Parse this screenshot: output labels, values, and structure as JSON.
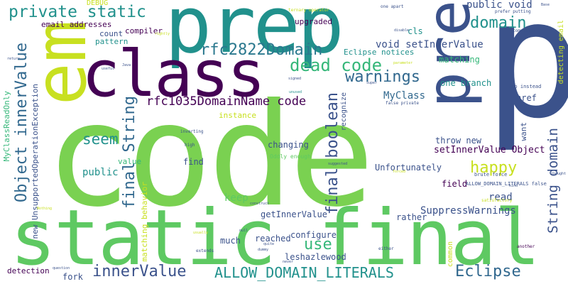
{
  "palette": {
    "green": "#5ec962",
    "lime": "#c8e020",
    "teal": "#21918c",
    "blue": "#3b528b",
    "purple": "#440154",
    "cyan": "#2a9d8f",
    "lightgreen": "#7ad151"
  },
  "words": [
    {
      "key": "code",
      "text": "code",
      "color": "#7ad151"
    },
    {
      "key": "static_final",
      "text": "static final",
      "color": "#5ec962"
    },
    {
      "key": "prep",
      "text": "prep",
      "color": "#21918c"
    },
    {
      "key": "p",
      "text": "p",
      "color": "#3b528b"
    },
    {
      "key": "pre",
      "text": "pre",
      "color": "#3b528b"
    },
    {
      "key": "em",
      "text": "em",
      "color": "#c8e020"
    },
    {
      "key": "class",
      "text": "class",
      "color": "#440154"
    },
    {
      "key": "private_static",
      "text": "private static",
      "color": "#21918c"
    },
    {
      "key": "rfc2822Domain",
      "text": "rfc2822Domain",
      "color": "#2a788e"
    },
    {
      "key": "dead_code",
      "text": "dead code",
      "color": "#35b779"
    },
    {
      "key": "warnings",
      "text": "warnings",
      "color": "#31688e"
    },
    {
      "key": "object_innervalue",
      "text": "Object innerValue",
      "color": "#31688e"
    },
    {
      "key": "rfc1035",
      "text": "rfc1035DomainName code",
      "color": "#440154"
    },
    {
      "key": "final_string",
      "text": "final String",
      "color": "#31688e"
    },
    {
      "key": "final_boolean",
      "text": "final boolean",
      "color": "#3b528b"
    },
    {
      "key": "domain",
      "text": "domain",
      "color": "#21918c"
    },
    {
      "key": "happy",
      "text": "happy",
      "color": "#c8e020"
    },
    {
      "key": "use",
      "text": "use",
      "color": "#35b779"
    },
    {
      "key": "seem",
      "text": "seem",
      "color": "#21918c"
    },
    {
      "key": "innervalue",
      "text": "innerValue",
      "color": "#3b528b"
    },
    {
      "key": "allow_domain_literals",
      "text": "ALLOW_DOMAIN_LITERALS",
      "color": "#21918c"
    },
    {
      "key": "eclipse",
      "text": "Eclipse",
      "color": "#31688e"
    },
    {
      "key": "string_domain",
      "text": "String domain",
      "color": "#3b528b"
    },
    {
      "key": "public_void",
      "text": "public void",
      "color": "#3b528b"
    },
    {
      "key": "void_setinnervalue",
      "text": "void setInnerValue",
      "color": "#3b528b"
    },
    {
      "key": "myclass",
      "text": "MyClass",
      "color": "#31688e"
    },
    {
      "key": "setinnervalue_object",
      "text": "setInnerValue Object",
      "color": "#440154"
    },
    {
      "key": "throw_new",
      "text": "throw new",
      "color": "#3b528b"
    },
    {
      "key": "suppresswarnings",
      "text": "SuppressWarnings",
      "color": "#3b528b"
    },
    {
      "key": "read",
      "text": "read",
      "color": "#3b528b"
    },
    {
      "key": "public",
      "text": "public",
      "color": "#21918c"
    },
    {
      "key": "keep",
      "text": "keep",
      "color": "#5ec962"
    },
    {
      "key": "getinnervalue",
      "text": "getInnerValue",
      "color": "#3b528b"
    },
    {
      "key": "configure",
      "text": "configure",
      "color": "#3b528b"
    },
    {
      "key": "reached",
      "text": "reached",
      "color": "#3b528b"
    },
    {
      "key": "leshazlewood",
      "text": "leshazlewood",
      "color": "#3b528b"
    },
    {
      "key": "much",
      "text": "much",
      "color": "#3b528b"
    },
    {
      "key": "fork",
      "text": "fork",
      "color": "#3b528b"
    },
    {
      "key": "detection",
      "text": "detection",
      "color": "#440154"
    },
    {
      "key": "rather",
      "text": "rather",
      "color": "#3b528b"
    },
    {
      "key": "unfortunately",
      "text": "Unfortunately",
      "color": "#3b528b"
    },
    {
      "key": "changing",
      "text": "changing",
      "color": "#3b528b"
    },
    {
      "key": "find",
      "text": "find",
      "color": "#3b528b"
    },
    {
      "key": "instance",
      "text": "instance",
      "color": "#c8e020"
    },
    {
      "key": "value",
      "text": "value",
      "color": "#35b779"
    },
    {
      "key": "field",
      "text": "field",
      "color": "#440154"
    },
    {
      "key": "href",
      "text": "href",
      "color": "#3b528b"
    },
    {
      "key": "one_branch",
      "text": "one branch",
      "color": "#21918c"
    },
    {
      "key": "matching",
      "text": "matching",
      "color": "#35b779"
    },
    {
      "key": "eclipse_notices",
      "text": "Eclipse notices",
      "color": "#21918c"
    },
    {
      "key": "upgraded",
      "text": "upgraded",
      "color": "#440154"
    },
    {
      "key": "cls",
      "text": "cls",
      "color": "#21918c"
    },
    {
      "key": "compiler",
      "text": "compiler",
      "color": "#440154"
    },
    {
      "key": "count",
      "text": "count",
      "color": "#3b528b"
    },
    {
      "key": "pattern",
      "text": "pattern",
      "color": "#21918c"
    },
    {
      "key": "email_addresses",
      "text": "email addresses",
      "color": "#440154"
    },
    {
      "key": "debug",
      "text": "DEBUG",
      "color": "#c8e020"
    },
    {
      "key": "myclassreadonly",
      "text": "MyClassReadOnly",
      "color": "#35b779"
    },
    {
      "key": "new_unsupported",
      "text": "new UnsupportedOperationException",
      "color": "#3b528b"
    },
    {
      "key": "matching_behavior",
      "text": "matching behavior",
      "color": "#c8e020"
    },
    {
      "key": "recognize",
      "text": "recognize",
      "color": "#3b528b"
    },
    {
      "key": "want",
      "text": "want",
      "color": "#3b528b"
    },
    {
      "key": "detecting_email",
      "text": "detecting email",
      "color": "#c8e020"
    },
    {
      "key": "oddly_enough",
      "text": "Oddly enough",
      "color": "#5ec962"
    },
    {
      "key": "inverting",
      "text": "inverting",
      "color": "#3b528b"
    },
    {
      "key": "high",
      "text": "high",
      "color": "#3b528b"
    },
    {
      "key": "brute_force",
      "text": "brute force",
      "color": "#3b528b"
    },
    {
      "key": "allow_false",
      "text": "ALLOW_DOMAIN_LITERALS false",
      "color": "#3b528b"
    },
    {
      "key": "satisfactory",
      "text": "satisfactory",
      "color": "#c8e020"
    },
    {
      "key": "top_instead",
      "text": "top instead",
      "color": "#3b528b"
    },
    {
      "key": "complains",
      "text": "complains",
      "color": "#3b528b"
    },
    {
      "key": "prefer_putting",
      "text": "prefer putting",
      "color": "#3b528b"
    },
    {
      "key": "ternary_operator",
      "text": "ternary operator",
      "color": "#c8e020"
    },
    {
      "key": "one_apart",
      "text": "one apart",
      "color": "#3b528b"
    },
    {
      "key": "false_private",
      "text": "false private",
      "color": "#3b528b"
    },
    {
      "key": "common",
      "text": "common",
      "color": "#c8e020"
    },
    {
      "key": "another",
      "text": "another",
      "color": "#440154"
    },
    {
      "key": "either",
      "text": "either",
      "color": "#3b528b"
    },
    {
      "key": "never",
      "text": "never",
      "color": "#3b528b"
    },
    {
      "key": "quite",
      "text": "quite",
      "color": "#3b528b"
    },
    {
      "key": "dummy",
      "text": "dummy",
      "color": "#3b528b"
    },
    {
      "key": "extends",
      "text": "extends",
      "color": "#3b528b"
    },
    {
      "key": "question",
      "text": "question",
      "color": "#3b528b"
    },
    {
      "key": "nothing",
      "text": "Nothing",
      "color": "#c8e020"
    },
    {
      "key": "usually",
      "text": "usually",
      "color": "#c8e020"
    },
    {
      "key": "construct",
      "text": "construct",
      "color": "#3b528b"
    },
    {
      "key": "null",
      "text": "null",
      "color": "#3b528b"
    },
    {
      "key": "return",
      "text": "return",
      "color": "#3b528b"
    },
    {
      "key": "useful",
      "text": "useful",
      "color": "#3b528b"
    },
    {
      "key": "java",
      "text": "Java",
      "color": "#3b528b"
    },
    {
      "key": "rightly",
      "text": "rightly",
      "color": "#c8e020"
    },
    {
      "key": "disable",
      "text": "disable",
      "color": "#3b528b"
    },
    {
      "key": "parameter",
      "text": "parameter",
      "color": "#c8e020"
    },
    {
      "key": "signed",
      "text": "signed",
      "color": "#3b528b"
    },
    {
      "key": "unused",
      "text": "unused",
      "color": "#21918c"
    },
    {
      "key": "super",
      "text": "super",
      "color": "#3b528b"
    },
    {
      "key": "suggested",
      "text": "suggested",
      "color": "#3b528b"
    },
    {
      "key": "forced",
      "text": "forced",
      "color": "#c8e020"
    },
    {
      "key": "kind",
      "text": "kind",
      "color": "#3b528b"
    },
    {
      "key": "thought",
      "text": "thought",
      "color": "#3b528b"
    },
    {
      "key": "base",
      "text": "Base",
      "color": "#3b528b"
    }
  ]
}
